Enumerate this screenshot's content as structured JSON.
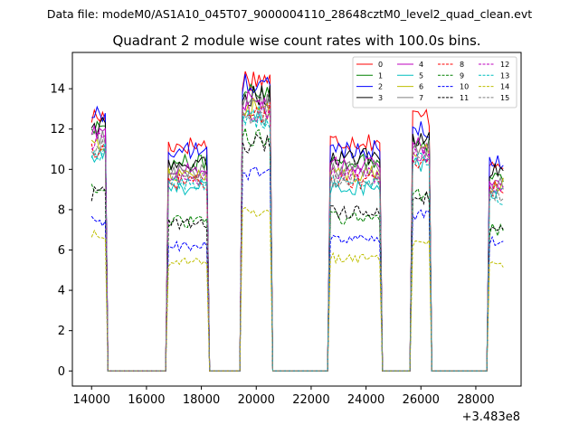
{
  "header": "Data file: modeM0/AS1A10_045T07_9000004110_28648cztM0_level2_quad_clean.evt",
  "chart_data": {
    "type": "line",
    "title": "Quadrant 2 module wise count rates with 100.0s bins.",
    "xlabel": "",
    "ylabel": "",
    "x_offset_label": "+3.483e8",
    "xlim": [
      13300,
      29650
    ],
    "ylim": [
      -0.75,
      15.8
    ],
    "xticks": [
      14000,
      16000,
      18000,
      20000,
      22000,
      24000,
      26000,
      28000
    ],
    "yticks": [
      0,
      2,
      4,
      6,
      8,
      10,
      12,
      14
    ],
    "legend_position": "top-right",
    "segments": [
      {
        "start": 14000,
        "end": 14500,
        "gap_end": 16700
      },
      {
        "start": 16800,
        "end": 18200,
        "gap_end": 19400
      },
      {
        "start": 19500,
        "end": 20500,
        "gap_end": 22600
      },
      {
        "start": 22700,
        "end": 24500,
        "gap_end": 25600
      },
      {
        "start": 25700,
        "end": 26300,
        "gap_end": 28400
      },
      {
        "start": 28500,
        "end": 29000,
        "gap_end": null
      }
    ],
    "series": [
      {
        "name": "0",
        "color": "#ff0000",
        "dashed": false,
        "levels": [
          12.6,
          11.2,
          14.5,
          11.4,
          12.6,
          10.4
        ]
      },
      {
        "name": "1",
        "color": "#008000",
        "dashed": false,
        "levels": [
          12.2,
          10.3,
          14.0,
          10.4,
          11.4,
          9.6
        ]
      },
      {
        "name": "2",
        "color": "#0000ff",
        "dashed": false,
        "levels": [
          12.7,
          10.9,
          14.2,
          11.0,
          11.9,
          10.3
        ]
      },
      {
        "name": "3",
        "color": "#000000",
        "dashed": false,
        "levels": [
          12.1,
          10.2,
          13.7,
          10.6,
          11.6,
          9.9
        ]
      },
      {
        "name": "4",
        "color": "#bf00bf",
        "dashed": false,
        "levels": [
          11.7,
          10.0,
          13.4,
          10.2,
          11.2,
          9.4
        ]
      },
      {
        "name": "5",
        "color": "#00bfbf",
        "dashed": false,
        "levels": [
          10.6,
          9.1,
          12.6,
          9.1,
          10.2,
          8.8
        ]
      },
      {
        "name": "6",
        "color": "#bfbf00",
        "dashed": false,
        "levels": [
          11.3,
          9.7,
          13.0,
          9.8,
          10.8,
          9.2
        ]
      },
      {
        "name": "7",
        "color": "#808080",
        "dashed": false,
        "levels": [
          11.5,
          9.9,
          13.2,
          10.0,
          11.0,
          9.3
        ]
      },
      {
        "name": "8",
        "color": "#ff0000",
        "dashed": true,
        "levels": [
          11.0,
          9.4,
          12.8,
          9.4,
          10.5,
          9.0
        ]
      },
      {
        "name": "9",
        "color": "#008000",
        "dashed": true,
        "levels": [
          9.0,
          7.4,
          11.6,
          7.6,
          8.8,
          7.0
        ]
      },
      {
        "name": "10",
        "color": "#0000ff",
        "dashed": true,
        "levels": [
          7.4,
          6.2,
          9.8,
          6.5,
          7.8,
          6.4
        ]
      },
      {
        "name": "11",
        "color": "#000000",
        "dashed": true,
        "levels": [
          8.8,
          7.3,
          11.3,
          7.9,
          8.6,
          6.9
        ]
      },
      {
        "name": "12",
        "color": "#bf00bf",
        "dashed": true,
        "levels": [
          11.4,
          9.6,
          12.9,
          9.7,
          10.7,
          8.9
        ]
      },
      {
        "name": "13",
        "color": "#00bfbf",
        "dashed": true,
        "levels": [
          10.9,
          9.3,
          12.5,
          9.3,
          10.4,
          8.6
        ]
      },
      {
        "name": "14",
        "color": "#bfbf00",
        "dashed": true,
        "levels": [
          6.8,
          5.4,
          7.9,
          5.6,
          6.3,
          5.3
        ]
      },
      {
        "name": "15",
        "color": "#808080",
        "dashed": true,
        "levels": [
          11.1,
          9.5,
          12.7,
          9.5,
          10.6,
          8.7
        ]
      }
    ]
  }
}
